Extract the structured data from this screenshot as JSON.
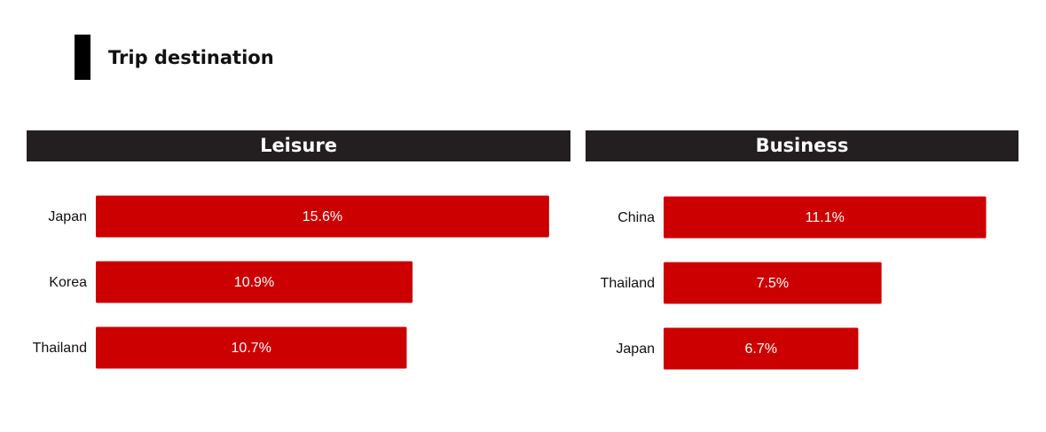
{
  "header": {
    "title": "Trip destination"
  },
  "chart_data": [
    {
      "type": "bar",
      "title": "Leisure",
      "categories": [
        "Japan",
        "Korea",
        "Thailand"
      ],
      "values": [
        15.6,
        10.9,
        10.7
      ],
      "value_labels": [
        "15.6%",
        "10.9%",
        "10.7%"
      ],
      "color": "#cc0000"
    },
    {
      "type": "bar",
      "title": "Business",
      "categories": [
        "China",
        "Thailand",
        "Japan"
      ],
      "values": [
        11.1,
        7.5,
        6.7
      ],
      "value_labels": [
        "11.1%",
        "7.5%",
        "6.7%"
      ],
      "color": "#cc0000"
    }
  ]
}
